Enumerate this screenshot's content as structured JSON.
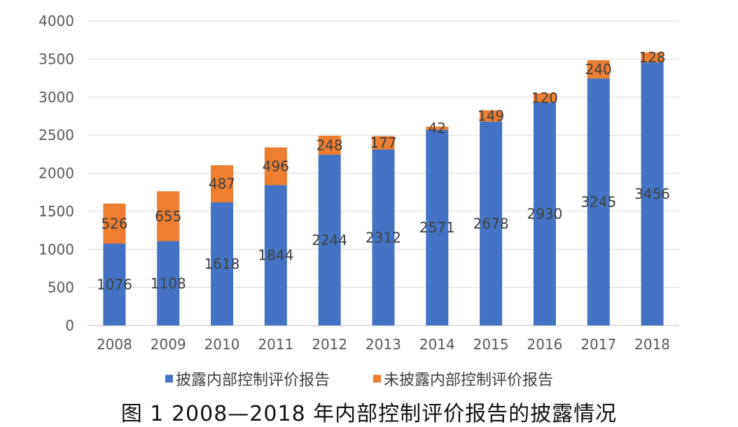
{
  "caption": "图 1  2008—2018 年内部控制评价报告的披露情况",
  "chart_data": {
    "type": "bar",
    "stacked": true,
    "categories": [
      "2008",
      "2009",
      "2010",
      "2011",
      "2012",
      "2013",
      "2014",
      "2015",
      "2016",
      "2017",
      "2018"
    ],
    "series": [
      {
        "name": "披露内部控制评价报告",
        "color": "#4472C4",
        "values": [
          1076,
          1108,
          1618,
          1844,
          2244,
          2312,
          2571,
          2678,
          2930,
          3245,
          3456
        ]
      },
      {
        "name": "未披露内部控制评价报告",
        "color": "#ED7D31",
        "values": [
          526,
          655,
          487,
          496,
          248,
          177,
          42,
          149,
          120,
          240,
          128
        ]
      }
    ],
    "ylim": [
      0,
      4000
    ],
    "yticks": [
      "0",
      "500",
      "1000",
      "1500",
      "2000",
      "2500",
      "3000",
      "3500",
      "4000"
    ],
    "grid": true,
    "legend_position": "bottom"
  }
}
